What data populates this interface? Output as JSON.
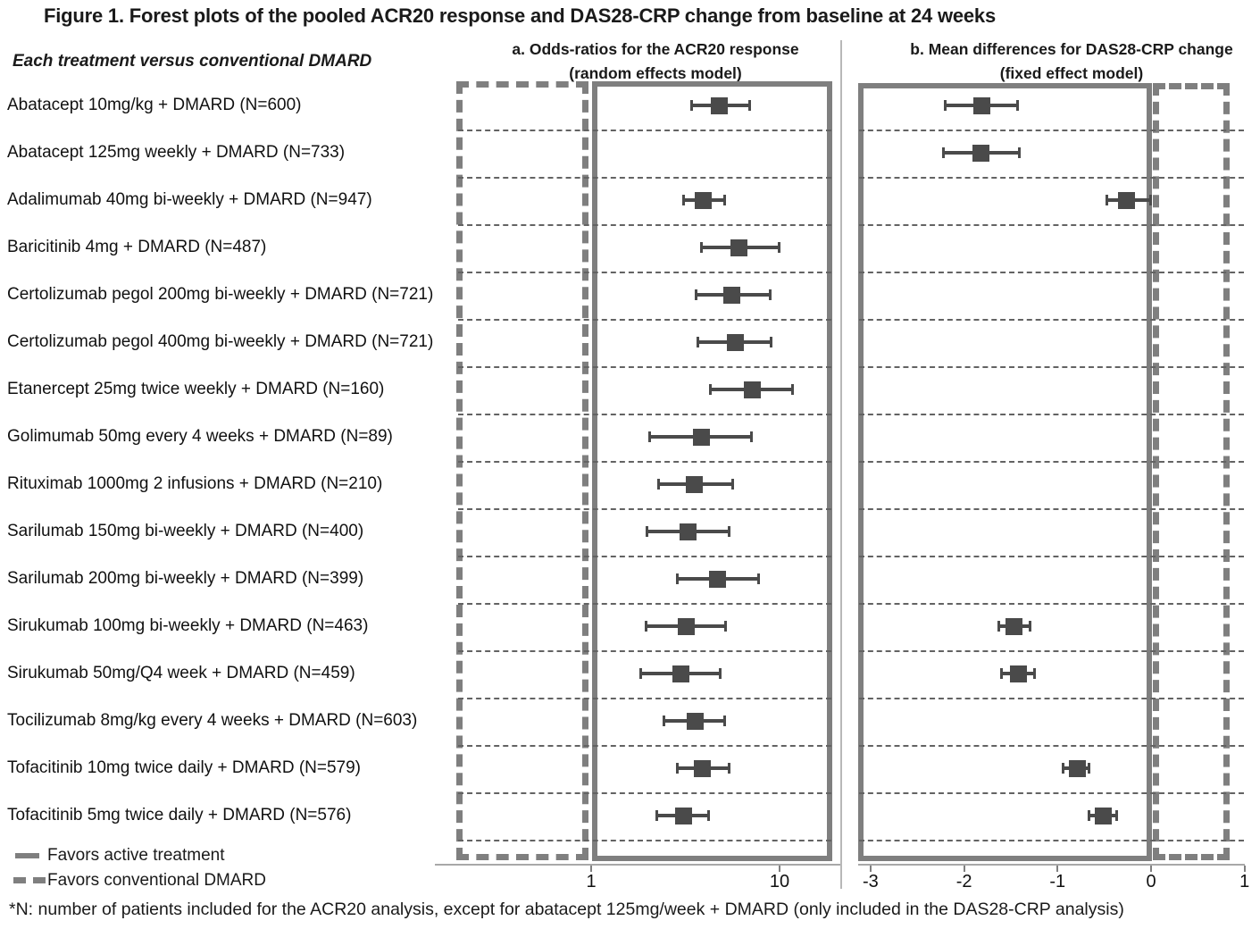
{
  "title": "Figure 1. Forest plots of the pooled ACR20 response and DAS28-CRP change from baseline at 24 weeks",
  "left_header": "Each treatment versus conventional DMARD",
  "panel_a": {
    "title_line1": "a. Odds-ratios for the ACR20 response",
    "title_line2": "(random effects model)"
  },
  "panel_b": {
    "title_line1": "b. Mean differences for DAS28-CRP change",
    "title_line2": "(fixed effect model)"
  },
  "legend": {
    "solid_label": "Favors active treatment",
    "dashed_label": "Favors conventional DMARD"
  },
  "footnote": "*N: number of patients included for the ACR20 analysis, except for abatacept 125mg/week + DMARD (only included in the DAS28-CRP analysis)",
  "colors": {
    "marker": "#4a4a4a",
    "frame_gray": "#7f7f7f",
    "gridline": "#636363",
    "axis": "#a8a8a8",
    "text": "#1a1a1a"
  },
  "chart_data": {
    "type": "forest",
    "panels": [
      {
        "id": "a",
        "title": "a. Odds-ratios for the ACR20 response",
        "subtitle": "(random effects model)",
        "scale": "log",
        "ticks": [
          1,
          10
        ],
        "tick_labels": [
          "1",
          "10"
        ],
        "xlim": [
          0.2,
          18.8
        ],
        "ref_value": 1,
        "grid": true,
        "favors_active_region": "right_of_1_solid_box",
        "favors_conventional_region": "left_of_1_dashed_box"
      },
      {
        "id": "b",
        "title": "b. Mean differences for DAS28-CRP change",
        "subtitle": "(fixed effect model)",
        "scale": "linear",
        "ticks": [
          -3,
          -2,
          -1,
          0,
          1
        ],
        "tick_labels": [
          "-3",
          "-2",
          "-1",
          "0",
          "1"
        ],
        "xlim": [
          -3.12,
          1.0
        ],
        "ref_value": 0,
        "grid": true,
        "favors_active_region": "left_of_0_solid_box",
        "favors_conventional_region": "right_of_0_dashed_box"
      }
    ],
    "treatments": [
      {
        "label": "Abatacept 10mg/kg + DMARD (N=600)",
        "or": {
          "est": 4.8,
          "lo": 3.4,
          "hi": 7.0
        },
        "md": {
          "est": -1.81,
          "lo": -2.21,
          "hi": -1.42
        }
      },
      {
        "label": "Abatacept 125mg weekly + DMARD (N=733)",
        "or": null,
        "md": {
          "est": -1.82,
          "lo": -2.23,
          "hi": -1.4
        }
      },
      {
        "label": "Adalimumab 40mg bi-weekly + DMARD (N=947)",
        "or": {
          "est": 3.95,
          "lo": 3.08,
          "hi": 5.14
        },
        "md": {
          "est": -0.26,
          "lo": -0.48,
          "hi": 0.0
        }
      },
      {
        "label": "Baricitinib 4mg + DMARD (N=487)",
        "or": {
          "est": 6.1,
          "lo": 3.83,
          "hi": 10.0
        },
        "md": null
      },
      {
        "label": "Certolizumab pegol 200mg bi-weekly + DMARD (N=721)",
        "or": {
          "est": 5.6,
          "lo": 3.59,
          "hi": 8.98
        },
        "md": null
      },
      {
        "label": "Certolizumab pegol 400mg bi-weekly + DMARD (N=721)",
        "or": {
          "est": 5.8,
          "lo": 3.67,
          "hi": 9.07
        },
        "md": null
      },
      {
        "label": "Etanercept 25mg twice weekly + DMARD (N=160)",
        "or": {
          "est": 7.15,
          "lo": 4.27,
          "hi": 11.8
        },
        "md": null
      },
      {
        "label": "Golimumab 50mg every 4 weeks + DMARD (N=89)",
        "or": {
          "est": 3.83,
          "lo": 2.03,
          "hi": 7.13
        },
        "md": null
      },
      {
        "label": "Rituximab 1000mg 2 infusions + DMARD (N=210)",
        "or": {
          "est": 3.51,
          "lo": 2.27,
          "hi": 5.67
        },
        "md": null
      },
      {
        "label": "Sarilumab 150mg bi-weekly + DMARD (N=400)",
        "or": {
          "est": 3.25,
          "lo": 1.97,
          "hi": 5.43
        },
        "md": null
      },
      {
        "label": "Sarilumab 200mg bi-weekly + DMARD (N=399)",
        "or": {
          "est": 4.66,
          "lo": 2.85,
          "hi": 7.78
        },
        "md": null
      },
      {
        "label": "Sirukumab 100mg bi-weekly + DMARD (N=463)",
        "or": {
          "est": 3.21,
          "lo": 1.95,
          "hi": 5.19
        },
        "md": {
          "est": -1.47,
          "lo": -1.63,
          "hi": -1.29
        }
      },
      {
        "label": "Sirukumab 50mg/Q4 week + DMARD (N=459)",
        "or": {
          "est": 3.01,
          "lo": 1.82,
          "hi": 4.87
        },
        "md": {
          "est": -1.42,
          "lo": -1.6,
          "hi": -1.24
        }
      },
      {
        "label": "Tocilizumab 8mg/kg every 4 weeks + DMARD (N=603)",
        "or": {
          "est": 3.55,
          "lo": 2.42,
          "hi": 5.14
        },
        "md": null
      },
      {
        "label": "Tofacitinib 10mg twice daily + DMARD (N=579)",
        "or": {
          "est": 3.91,
          "lo": 2.85,
          "hi": 5.43
        },
        "md": {
          "est": -0.79,
          "lo": -0.95,
          "hi": -0.66
        }
      },
      {
        "label": "Tofacitinib 5mg twice daily + DMARD (N=576)",
        "or": {
          "est": 3.08,
          "lo": 2.22,
          "hi": 4.22
        },
        "md": {
          "est": -0.51,
          "lo": -0.67,
          "hi": -0.36
        }
      }
    ]
  }
}
